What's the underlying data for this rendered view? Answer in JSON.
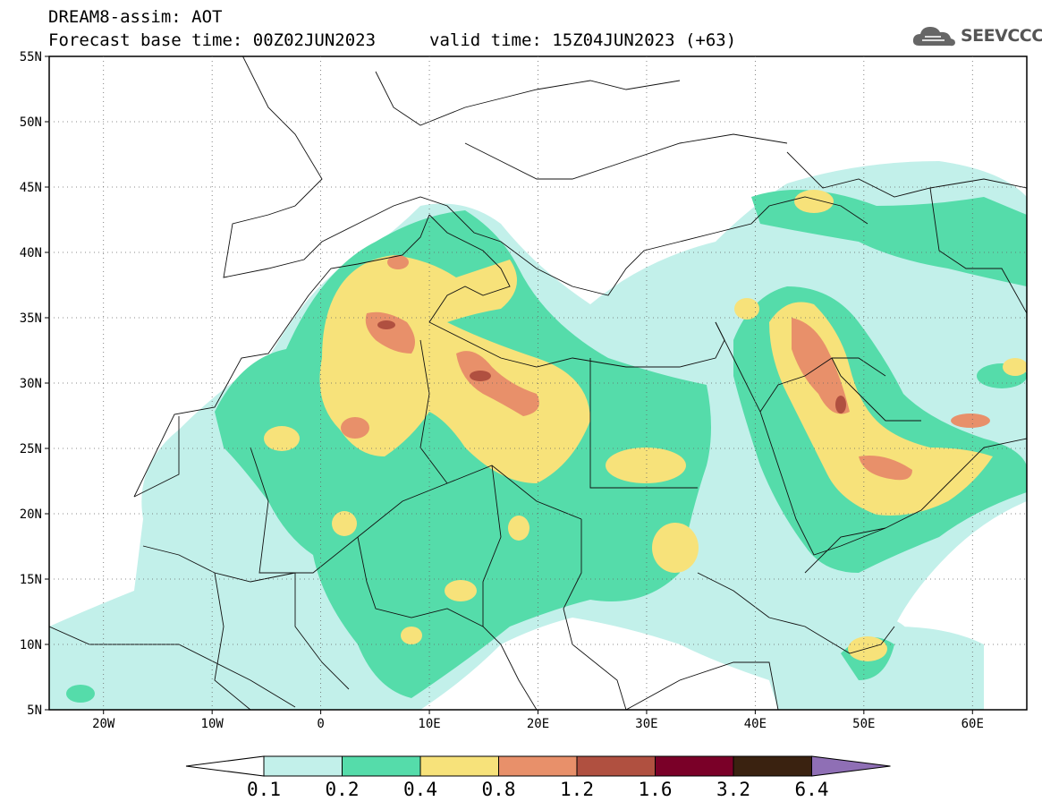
{
  "header": {
    "line1": "DREAM8-assim: AOT",
    "line2_base": "Forecast base time: 00Z02JUN2023",
    "line2_valid": "valid time: 15Z04JUN2023 (+63)"
  },
  "logo": {
    "text": "SEEVCCC",
    "icon": "cloud-logo-icon"
  },
  "map": {
    "lat_labels": [
      "55N",
      "50N",
      "45N",
      "40N",
      "35N",
      "30N",
      "25N",
      "20N",
      "15N",
      "10N",
      "5N"
    ],
    "lon_labels": [
      "20W",
      "10W",
      "0",
      "10E",
      "20E",
      "30E",
      "40E",
      "50E",
      "60E"
    ]
  },
  "colorbar": {
    "labels": [
      "0.1",
      "0.2",
      "0.4",
      "0.8",
      "1.2",
      "1.6",
      "3.2",
      "6.4"
    ],
    "colors": [
      "#ffffff",
      "#c2f0ea",
      "#55dcaa",
      "#f7e27a",
      "#e8906a",
      "#b05040",
      "#7a0028",
      "#3a2210",
      "#8f6fb5"
    ]
  }
}
